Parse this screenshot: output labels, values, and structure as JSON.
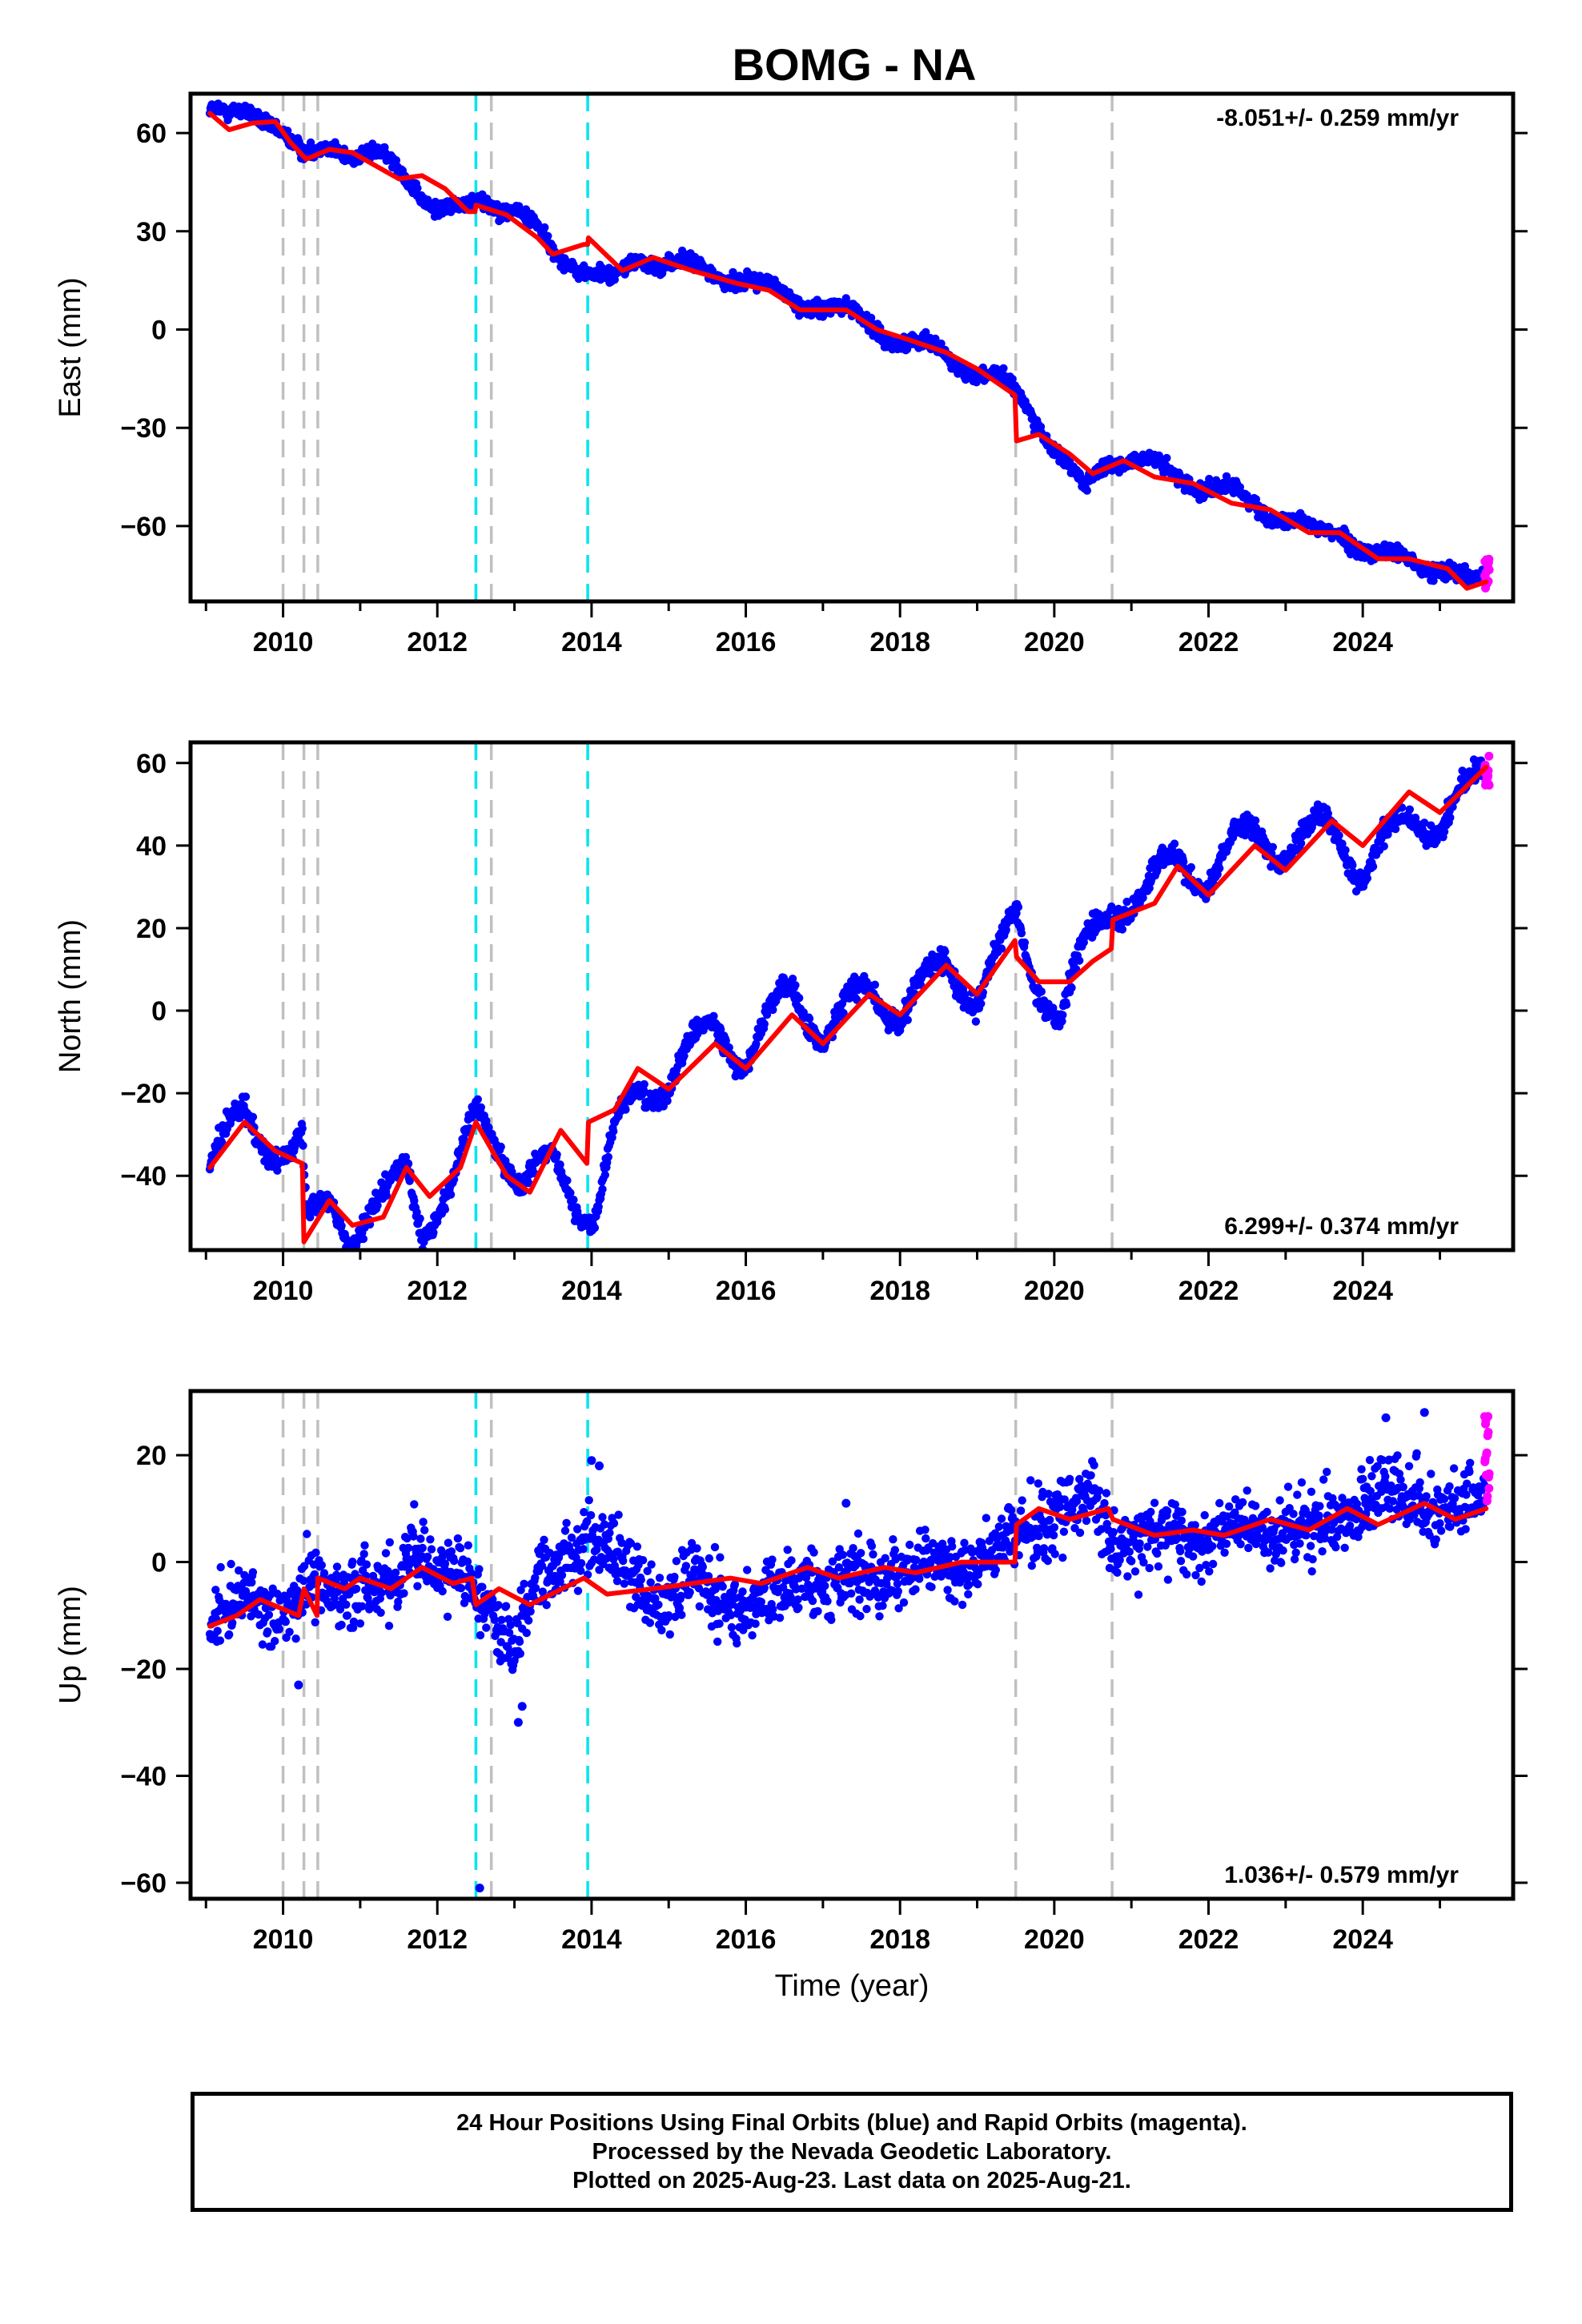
{
  "title": "BOMG - NA",
  "xlabel": "Time (year)",
  "footer": {
    "line1": "24 Hour Positions Using Final Orbits (blue) and Rapid Orbits (magenta).",
    "line2": "Processed by the Nevada Geodetic Laboratory.",
    "line3": "Plotted on 2025-Aug-23. Last data on 2025-Aug-21."
  },
  "colors": {
    "final_orbits": "#0000ff",
    "rapid_orbits": "#ff00ff",
    "model": "#ff0000",
    "gray_event": "#c0c0c0",
    "cyan_event": "#00e5ee"
  },
  "chart_data": [
    {
      "type": "scatter",
      "name": "east",
      "ylabel": "East (mm)",
      "rate": "-8.051+/- 0.259 mm/yr",
      "rate_position": "top-right",
      "xlim": [
        2008.8,
        2025.95
      ],
      "ylim": [
        -83,
        72
      ],
      "yticks": [
        60,
        30,
        0,
        -30,
        -60
      ],
      "xticks": [
        2010,
        2012,
        2014,
        2016,
        2018,
        2020,
        2022,
        2024
      ],
      "xtick_labels": [
        "2010",
        "2012",
        "2014",
        "2016",
        "2018",
        "2020",
        "2022",
        "2024"
      ],
      "gray_lines": [
        2010.0,
        2010.27,
        2010.45,
        2012.7,
        2019.5,
        2020.75
      ],
      "cyan_lines": [
        2012.5,
        2013.95
      ],
      "amplitude": 2.5,
      "noise": 1.6,
      "model_knots": [
        [
          2009.05,
          66
        ],
        [
          2009.3,
          61
        ],
        [
          2009.6,
          63
        ],
        [
          2009.9,
          63.5
        ],
        [
          2010.1,
          57
        ],
        [
          2010.3,
          52
        ],
        [
          2010.6,
          55
        ],
        [
          2010.9,
          54
        ],
        [
          2011.2,
          50
        ],
        [
          2011.5,
          46
        ],
        [
          2011.8,
          47
        ],
        [
          2012.1,
          43
        ],
        [
          2012.4,
          36
        ],
        [
          2012.49,
          36
        ],
        [
          2012.5,
          38
        ],
        [
          2012.9,
          35
        ],
        [
          2013.3,
          28
        ],
        [
          2013.5,
          23
        ],
        [
          2013.9,
          26
        ],
        [
          2013.95,
          26
        ],
        [
          2013.96,
          28
        ],
        [
          2014.4,
          18
        ],
        [
          2014.8,
          22
        ],
        [
          2015.3,
          18
        ],
        [
          2015.9,
          14
        ],
        [
          2016.3,
          12
        ],
        [
          2016.7,
          6
        ],
        [
          2017.3,
          6
        ],
        [
          2017.7,
          0
        ],
        [
          2018.1,
          -3
        ],
        [
          2018.6,
          -7
        ],
        [
          2019.0,
          -12
        ],
        [
          2019.49,
          -20
        ],
        [
          2019.51,
          -34
        ],
        [
          2019.8,
          -32
        ],
        [
          2020.2,
          -38
        ],
        [
          2020.5,
          -44
        ],
        [
          2020.9,
          -40
        ],
        [
          2021.3,
          -45
        ],
        [
          2021.8,
          -47
        ],
        [
          2022.3,
          -53
        ],
        [
          2022.8,
          -55
        ],
        [
          2023.3,
          -62
        ],
        [
          2023.7,
          -62
        ],
        [
          2024.2,
          -70
        ],
        [
          2024.6,
          -70
        ],
        [
          2025.1,
          -73
        ],
        [
          2025.35,
          -79
        ],
        [
          2025.6,
          -77
        ]
      ],
      "data_knots": [
        [
          2009.05,
          68
        ],
        [
          2009.3,
          64
        ],
        [
          2009.6,
          66
        ],
        [
          2009.9,
          64
        ],
        [
          2010.1,
          58
        ],
        [
          2010.3,
          51
        ],
        [
          2010.6,
          56
        ],
        [
          2010.9,
          55
        ],
        [
          2011.2,
          53
        ],
        [
          2011.6,
          46
        ],
        [
          2012.0,
          38
        ],
        [
          2012.4,
          35
        ],
        [
          2012.55,
          40
        ],
        [
          2013.0,
          38
        ],
        [
          2013.3,
          30
        ],
        [
          2013.5,
          22
        ],
        [
          2013.9,
          20
        ],
        [
          2014.3,
          14
        ],
        [
          2014.6,
          21
        ],
        [
          2015.0,
          22
        ],
        [
          2015.5,
          16
        ],
        [
          2016.0,
          17
        ],
        [
          2016.5,
          9
        ],
        [
          2017.0,
          8
        ],
        [
          2017.5,
          3
        ],
        [
          2018.0,
          -3
        ],
        [
          2018.5,
          -7
        ],
        [
          2019.0,
          -12
        ],
        [
          2019.5,
          -20
        ],
        [
          2019.7,
          -24
        ],
        [
          2020.0,
          -36
        ],
        [
          2020.4,
          -50
        ],
        [
          2020.7,
          -40
        ],
        [
          2021.0,
          -38
        ],
        [
          2021.5,
          -45
        ],
        [
          2022.0,
          -47
        ],
        [
          2022.5,
          -53
        ],
        [
          2023.0,
          -57
        ],
        [
          2023.4,
          -63
        ],
        [
          2023.7,
          -61
        ],
        [
          2024.2,
          -70
        ],
        [
          2024.6,
          -70
        ],
        [
          2025.0,
          -72
        ],
        [
          2025.4,
          -78
        ],
        [
          2025.6,
          -76
        ]
      ],
      "rapid": {
        "x_range": [
          2025.58,
          2025.64
        ],
        "y_range": [
          -80,
          -70
        ]
      },
      "outliers": []
    },
    {
      "type": "scatter",
      "name": "north",
      "ylabel": "North (mm)",
      "rate": "6.299+/- 0.374 mm/yr",
      "rate_position": "bottom-right",
      "xlim": [
        2008.8,
        2025.95
      ],
      "ylim": [
        -58,
        65
      ],
      "yticks": [
        60,
        40,
        20,
        0,
        -20,
        -40
      ],
      "xticks": [
        2010,
        2012,
        2014,
        2016,
        2018,
        2020,
        2022,
        2024
      ],
      "xtick_labels": [
        "2010",
        "2012",
        "2014",
        "2016",
        "2018",
        "2020",
        "2022",
        "2024"
      ],
      "gray_lines": [
        2010.0,
        2010.27,
        2010.45,
        2012.7,
        2019.5,
        2020.75
      ],
      "cyan_lines": [
        2012.5,
        2013.95
      ],
      "amplitude": 4,
      "noise": 1.8,
      "model_knots": [
        [
          2009.05,
          -38
        ],
        [
          2009.5,
          -27
        ],
        [
          2009.9,
          -34
        ],
        [
          2010.25,
          -37
        ],
        [
          2010.27,
          -56
        ],
        [
          2010.6,
          -46
        ],
        [
          2010.9,
          -52
        ],
        [
          2011.3,
          -50
        ],
        [
          2011.6,
          -38
        ],
        [
          2011.9,
          -45
        ],
        [
          2012.3,
          -38
        ],
        [
          2012.5,
          -27
        ],
        [
          2012.9,
          -40
        ],
        [
          2013.2,
          -44
        ],
        [
          2013.6,
          -29
        ],
        [
          2013.94,
          -37
        ],
        [
          2013.96,
          -27
        ],
        [
          2014.3,
          -24
        ],
        [
          2014.6,
          -14
        ],
        [
          2015.0,
          -19
        ],
        [
          2015.6,
          -8
        ],
        [
          2016.0,
          -14
        ],
        [
          2016.6,
          -1
        ],
        [
          2017.0,
          -8
        ],
        [
          2017.6,
          4
        ],
        [
          2018.0,
          -1
        ],
        [
          2018.6,
          11
        ],
        [
          2019.0,
          4
        ],
        [
          2019.49,
          17
        ],
        [
          2019.51,
          13
        ],
        [
          2019.8,
          7
        ],
        [
          2020.2,
          7
        ],
        [
          2020.5,
          12
        ],
        [
          2020.74,
          15
        ],
        [
          2020.76,
          22
        ],
        [
          2021.3,
          26
        ],
        [
          2021.6,
          35
        ],
        [
          2022.0,
          28
        ],
        [
          2022.6,
          40
        ],
        [
          2023.0,
          34
        ],
        [
          2023.6,
          46
        ],
        [
          2024.0,
          40
        ],
        [
          2024.6,
          53
        ],
        [
          2025.0,
          48
        ],
        [
          2025.6,
          59
        ]
      ],
      "data_knots": [
        [
          2009.05,
          -36
        ],
        [
          2009.5,
          -26
        ],
        [
          2009.9,
          -33
        ],
        [
          2010.25,
          -33
        ],
        [
          2010.3,
          -52
        ],
        [
          2010.6,
          -46
        ],
        [
          2010.9,
          -53
        ],
        [
          2011.3,
          -48
        ],
        [
          2011.6,
          -37
        ],
        [
          2011.8,
          -52
        ],
        [
          2012.2,
          -44
        ],
        [
          2012.5,
          -25
        ],
        [
          2012.8,
          -30
        ],
        [
          2013.1,
          -43
        ],
        [
          2013.5,
          -36
        ],
        [
          2013.8,
          -45
        ],
        [
          2014.05,
          -50
        ],
        [
          2014.3,
          -30
        ],
        [
          2014.6,
          -19
        ],
        [
          2015.0,
          -17
        ],
        [
          2015.6,
          -3
        ],
        [
          2016.0,
          -12
        ],
        [
          2016.6,
          6
        ],
        [
          2017.0,
          -6
        ],
        [
          2017.6,
          6
        ],
        [
          2018.0,
          -1
        ],
        [
          2018.6,
          12
        ],
        [
          2019.0,
          3
        ],
        [
          2019.5,
          22
        ],
        [
          2019.8,
          6
        ],
        [
          2020.1,
          -2
        ],
        [
          2020.4,
          15
        ],
        [
          2020.7,
          25
        ],
        [
          2021.2,
          28
        ],
        [
          2021.6,
          38
        ],
        [
          2022.0,
          32
        ],
        [
          2022.6,
          45
        ],
        [
          2023.0,
          38
        ],
        [
          2023.6,
          46
        ],
        [
          2024.0,
          33
        ],
        [
          2024.6,
          47
        ],
        [
          2025.0,
          45
        ],
        [
          2025.6,
          58
        ]
      ],
      "rapid": {
        "x_range": [
          2025.58,
          2025.64
        ],
        "y_range": [
          54,
          62
        ]
      },
      "outliers": []
    },
    {
      "type": "scatter",
      "name": "up",
      "ylabel": "Up (mm)",
      "rate": "1.036+/- 0.579 mm/yr",
      "rate_position": "bottom-right",
      "xlim": [
        2008.8,
        2025.95
      ],
      "ylim": [
        -63,
        32
      ],
      "yticks": [
        20,
        0,
        -20,
        -40,
        -60
      ],
      "xticks": [
        2010,
        2012,
        2014,
        2016,
        2018,
        2020,
        2022,
        2024
      ],
      "xtick_labels": [
        "2010",
        "2012",
        "2014",
        "2016",
        "2018",
        "2020",
        "2022",
        "2024"
      ],
      "gray_lines": [
        2010.0,
        2010.27,
        2010.45,
        2012.7,
        2019.5,
        2020.75
      ],
      "cyan_lines": [
        2012.5,
        2013.95
      ],
      "amplitude": 2,
      "noise": 4.5,
      "model_knots": [
        [
          2009.05,
          -12
        ],
        [
          2009.4,
          -10
        ],
        [
          2009.7,
          -7
        ],
        [
          2010.2,
          -10
        ],
        [
          2010.27,
          -5
        ],
        [
          2010.44,
          -10
        ],
        [
          2010.45,
          -3
        ],
        [
          2010.8,
          -5
        ],
        [
          2011.0,
          -3
        ],
        [
          2011.4,
          -5
        ],
        [
          2011.8,
          -1
        ],
        [
          2012.2,
          -4
        ],
        [
          2012.45,
          -3
        ],
        [
          2012.5,
          -8
        ],
        [
          2012.8,
          -5
        ],
        [
          2013.2,
          -8
        ],
        [
          2013.9,
          -3
        ],
        [
          2014.2,
          -6
        ],
        [
          2014.8,
          -5
        ],
        [
          2015.3,
          -4
        ],
        [
          2015.8,
          -3
        ],
        [
          2016.2,
          -4
        ],
        [
          2016.8,
          -1
        ],
        [
          2017.2,
          -3
        ],
        [
          2017.8,
          -1
        ],
        [
          2018.2,
          -2
        ],
        [
          2018.8,
          0
        ],
        [
          2019.49,
          0
        ],
        [
          2019.51,
          7
        ],
        [
          2019.8,
          10
        ],
        [
          2020.2,
          8
        ],
        [
          2020.7,
          10
        ],
        [
          2020.76,
          8
        ],
        [
          2021.3,
          5
        ],
        [
          2021.8,
          6
        ],
        [
          2022.2,
          5
        ],
        [
          2022.8,
          8
        ],
        [
          2023.3,
          6
        ],
        [
          2023.8,
          10
        ],
        [
          2024.2,
          7
        ],
        [
          2024.8,
          11
        ],
        [
          2025.2,
          8
        ],
        [
          2025.6,
          10
        ]
      ],
      "data_knots": [
        [
          2009.05,
          -12
        ],
        [
          2009.5,
          -7
        ],
        [
          2010.0,
          -9
        ],
        [
          2010.5,
          -5
        ],
        [
          2011.0,
          -4
        ],
        [
          2011.5,
          -6
        ],
        [
          2011.65,
          5
        ],
        [
          2012.0,
          0
        ],
        [
          2012.4,
          -5
        ],
        [
          2012.7,
          -8
        ],
        [
          2013.0,
          -14
        ],
        [
          2013.3,
          -5
        ],
        [
          2013.7,
          2
        ],
        [
          2014.0,
          6
        ],
        [
          2014.3,
          0
        ],
        [
          2014.8,
          -6
        ],
        [
          2015.3,
          -4
        ],
        [
          2015.8,
          -8
        ],
        [
          2016.3,
          -7
        ],
        [
          2016.8,
          -3
        ],
        [
          2017.3,
          -5
        ],
        [
          2017.8,
          -2
        ],
        [
          2018.3,
          -2
        ],
        [
          2018.8,
          0
        ],
        [
          2019.3,
          1
        ],
        [
          2019.6,
          6
        ],
        [
          2020.0,
          9
        ],
        [
          2020.5,
          12
        ],
        [
          2020.8,
          5
        ],
        [
          2021.3,
          3
        ],
        [
          2021.8,
          5
        ],
        [
          2022.3,
          5
        ],
        [
          2022.8,
          8
        ],
        [
          2023.3,
          5
        ],
        [
          2023.8,
          11
        ],
        [
          2024.3,
          12
        ],
        [
          2024.8,
          12
        ],
        [
          2025.3,
          9
        ],
        [
          2025.6,
          11
        ]
      ],
      "rapid": {
        "x_range": [
          2025.58,
          2025.64
        ],
        "y_range": [
          10,
          30
        ]
      },
      "outliers": [
        [
          2010.2,
          -23
        ],
        [
          2013.05,
          -30
        ],
        [
          2013.1,
          -27
        ],
        [
          2012.55,
          -61
        ],
        [
          2014.0,
          19
        ],
        [
          2014.1,
          18
        ],
        [
          2024.3,
          27
        ],
        [
          2024.8,
          28
        ],
        [
          2017.3,
          11
        ]
      ]
    }
  ]
}
